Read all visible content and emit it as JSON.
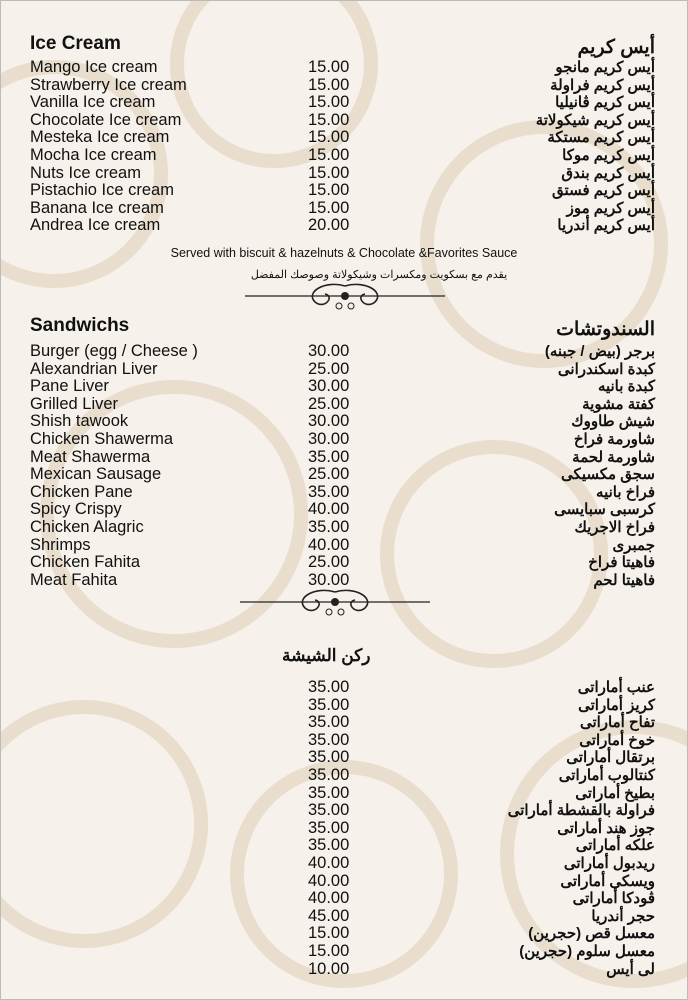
{
  "ice_cream": {
    "title_en": "Ice Cream",
    "title_ar": "أيس كريم",
    "items": [
      {
        "en": "Mango Ice cream",
        "price": "15.00",
        "ar": "أيس كريم مانجو"
      },
      {
        "en": "Strawberry Ice cream",
        "price": "15.00",
        "ar": "أيس كريم فراولة"
      },
      {
        "en": "Vanilla Ice cream",
        "price": "15.00",
        "ar": "أيس كريم ڤانيليا"
      },
      {
        "en": "Chocolate Ice cream",
        "price": "15.00",
        "ar": "أيس كريم شيكولاتة"
      },
      {
        "en": "Mesteka Ice cream",
        "price": "15.00",
        "ar": "أيس كريم مستكة"
      },
      {
        "en": "Mocha Ice cream",
        "price": "15.00",
        "ar": "أيس كريم موكا"
      },
      {
        "en": "Nuts Ice cream",
        "price": "15.00",
        "ar": "أيس كريم بندق"
      },
      {
        "en": "Pistachio Ice cream",
        "price": "15.00",
        "ar": "أيس كريم فستق"
      },
      {
        "en": "Banana Ice cream",
        "price": "15.00",
        "ar": "أيس كريم موز"
      },
      {
        "en": "Andrea Ice cream",
        "price": "20.00",
        "ar": "أيس كريم أندريا"
      }
    ],
    "note_en": "Served with biscuit & hazelnuts & Chocolate &Favorites Sauce",
    "note_ar": "يقدم مع بسكويت ومكسرات وشيكولاتة وصوصك المفضل"
  },
  "sandwiches": {
    "title_en": "Sandwichs",
    "title_ar": "السندوتشات",
    "items": [
      {
        "en": "Burger (egg / Cheese )",
        "price": "30.00",
        "ar": "برجر (بيض / جبنه)"
      },
      {
        "en": "Alexandrian Liver",
        "price": "25.00",
        "ar": "كبدة اسكندرانى"
      },
      {
        "en": "Pane Liver",
        "price": "30.00",
        "ar": "كبدة بانيه"
      },
      {
        "en": "Grilled Liver",
        "price": "25.00",
        "ar": "كفتة مشوية"
      },
      {
        "en": "Shish tawook",
        "price": "30.00",
        "ar": "شيش طاووك"
      },
      {
        "en": "Chicken Shawerma",
        "price": "30.00",
        "ar": "شاورمة فراخ"
      },
      {
        "en": "Meat Shawerma",
        "price": "35.00",
        "ar": "شاورمة لحمة"
      },
      {
        "en": "Mexican Sausage",
        "price": "25.00",
        "ar": "سجق مكسيكى"
      },
      {
        "en": "Chicken Pane",
        "price": "35.00",
        "ar": "فراخ بانيه"
      },
      {
        "en": "Spicy Crispy",
        "price": "40.00",
        "ar": "كرسبى سبايسى"
      },
      {
        "en": "Chicken Alagric",
        "price": "35.00",
        "ar": "فراخ الاجريك"
      },
      {
        "en": "Shrimps",
        "price": "40.00",
        "ar": "جمبرى"
      },
      {
        "en": "Chicken Fahita",
        "price": "25.00",
        "ar": "فاهيتا فراخ"
      },
      {
        "en": "Meat Fahita",
        "price": "30.00",
        "ar": "فاهيتا لحم"
      }
    ]
  },
  "shisha": {
    "title_ar": "ركن الشيشة",
    "items": [
      {
        "price": "35.00",
        "ar": "عنب أماراتى"
      },
      {
        "price": "35.00",
        "ar": "كريز أماراتى"
      },
      {
        "price": "35.00",
        "ar": "تفاح أماراتى"
      },
      {
        "price": "35.00",
        "ar": "خوخ أماراتى"
      },
      {
        "price": "35.00",
        "ar": "برتقال أماراتى"
      },
      {
        "price": "35.00",
        "ar": "كنتالوب أماراتى"
      },
      {
        "price": "35.00",
        "ar": "بطيخ أماراتى"
      },
      {
        "price": "35.00",
        "ar": "فراولة بالقشطة أماراتى"
      },
      {
        "price": "35.00",
        "ar": "جوز هند أماراتى"
      },
      {
        "price": "35.00",
        "ar": "علكه أماراتى"
      },
      {
        "price": "40.00",
        "ar": "ريدبول أماراتى"
      },
      {
        "price": "40.00",
        "ar": "ويسكى أماراتى"
      },
      {
        "price": "40.00",
        "ar": "ڤودكا أماراتى"
      },
      {
        "price": "45.00",
        "ar": "حجر أندريا"
      },
      {
        "price": "15.00",
        "ar": "معسل قص (حجرين)"
      },
      {
        "price": "15.00",
        "ar": "معسل سلوم (حجرين)"
      },
      {
        "price": "10.00",
        "ar": "لى أيس"
      }
    ]
  },
  "colors": {
    "background": "#f6f1ea",
    "pattern": "#e6d9c6",
    "text": "#111111"
  }
}
